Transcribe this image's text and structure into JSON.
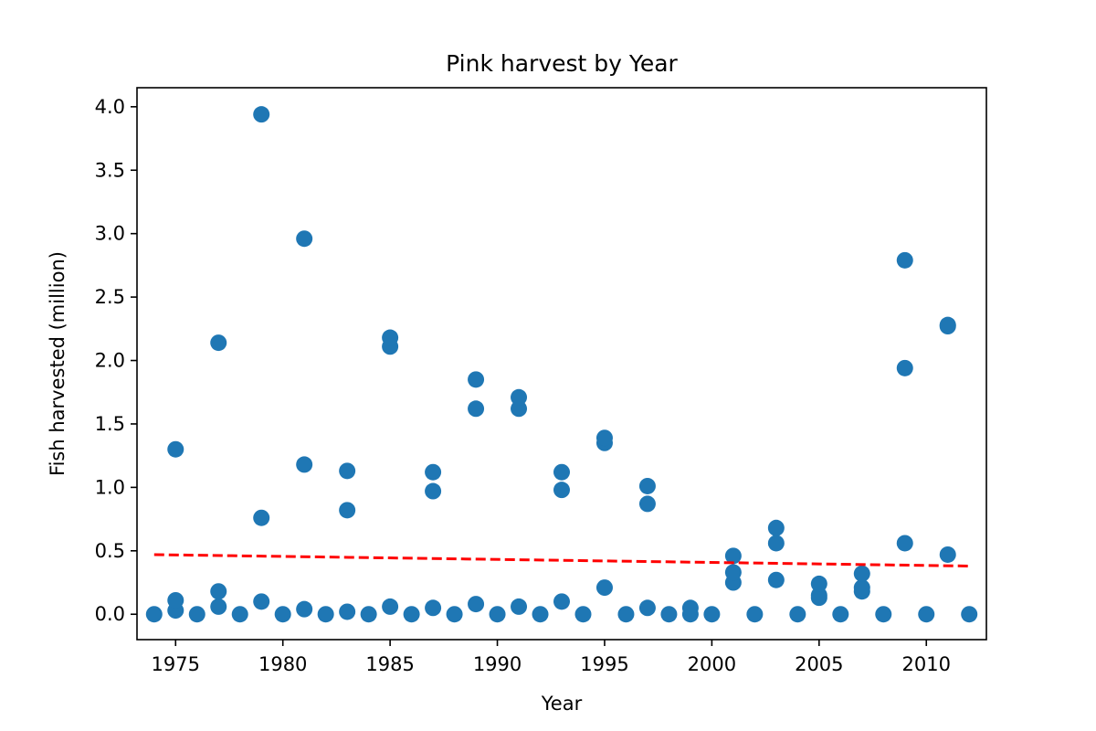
{
  "chart_data": {
    "type": "scatter",
    "title": "Pink harvest by Year",
    "xlabel": "Year",
    "ylabel": "Fish harvested (million)",
    "xlim": [
      1973.2,
      2012.8
    ],
    "ylim": [
      -0.2,
      4.15
    ],
    "xticks": [
      1975,
      1980,
      1985,
      1990,
      1995,
      2000,
      2005,
      2010
    ],
    "yticks": [
      "0.0",
      "0.5",
      "1.0",
      "1.5",
      "2.0",
      "2.5",
      "3.0",
      "3.5",
      "4.0"
    ],
    "grid": false,
    "legend": "none",
    "colors": {
      "points": "#1f77b4",
      "trend": "#ff0000"
    },
    "series": [
      {
        "points": [
          [
            1974,
            0.0
          ],
          [
            1975,
            0.03
          ],
          [
            1975,
            0.11
          ],
          [
            1975,
            1.3
          ],
          [
            1976,
            0.0
          ],
          [
            1977,
            0.06
          ],
          [
            1977,
            0.18
          ],
          [
            1977,
            2.14
          ],
          [
            1978,
            0.0
          ],
          [
            1979,
            0.1
          ],
          [
            1979,
            0.76
          ],
          [
            1979,
            3.94
          ],
          [
            1980,
            0.0
          ],
          [
            1981,
            0.04
          ],
          [
            1981,
            1.18
          ],
          [
            1981,
            2.96
          ],
          [
            1982,
            0.0
          ],
          [
            1983,
            0.02
          ],
          [
            1983,
            0.82
          ],
          [
            1983,
            1.13
          ],
          [
            1984,
            0.0
          ],
          [
            1985,
            0.06
          ],
          [
            1985,
            2.11
          ],
          [
            1985,
            2.18
          ],
          [
            1986,
            0.0
          ],
          [
            1987,
            0.05
          ],
          [
            1987,
            0.97
          ],
          [
            1987,
            1.12
          ],
          [
            1988,
            0.0
          ],
          [
            1989,
            0.08
          ],
          [
            1989,
            1.62
          ],
          [
            1989,
            1.85
          ],
          [
            1990,
            0.0
          ],
          [
            1991,
            0.06
          ],
          [
            1991,
            1.62
          ],
          [
            1991,
            1.71
          ],
          [
            1992,
            0.0
          ],
          [
            1993,
            0.1
          ],
          [
            1993,
            0.98
          ],
          [
            1993,
            1.12
          ],
          [
            1994,
            0.0
          ],
          [
            1995,
            0.21
          ],
          [
            1995,
            1.35
          ],
          [
            1995,
            1.39
          ],
          [
            1996,
            0.0
          ],
          [
            1997,
            0.05
          ],
          [
            1997,
            0.87
          ],
          [
            1997,
            1.01
          ],
          [
            1998,
            0.0
          ],
          [
            1999,
            0.0
          ],
          [
            1999,
            0.05
          ],
          [
            2000,
            0.0
          ],
          [
            2001,
            0.25
          ],
          [
            2001,
            0.33
          ],
          [
            2001,
            0.46
          ],
          [
            2002,
            0.0
          ],
          [
            2003,
            0.27
          ],
          [
            2003,
            0.56
          ],
          [
            2003,
            0.68
          ],
          [
            2004,
            0.0
          ],
          [
            2005,
            0.13
          ],
          [
            2005,
            0.15
          ],
          [
            2005,
            0.24
          ],
          [
            2006,
            0.0
          ],
          [
            2007,
            0.18
          ],
          [
            2007,
            0.21
          ],
          [
            2007,
            0.32
          ],
          [
            2008,
            0.0
          ],
          [
            2009,
            0.56
          ],
          [
            2009,
            1.94
          ],
          [
            2009,
            2.79
          ],
          [
            2010,
            0.0
          ],
          [
            2011,
            0.47
          ],
          [
            2011,
            2.27
          ],
          [
            2011,
            2.28
          ],
          [
            2012,
            0.0
          ]
        ]
      }
    ],
    "trend_line": {
      "style": "dashed",
      "x": [
        1974,
        2012
      ],
      "y": [
        0.47,
        0.38
      ]
    }
  }
}
